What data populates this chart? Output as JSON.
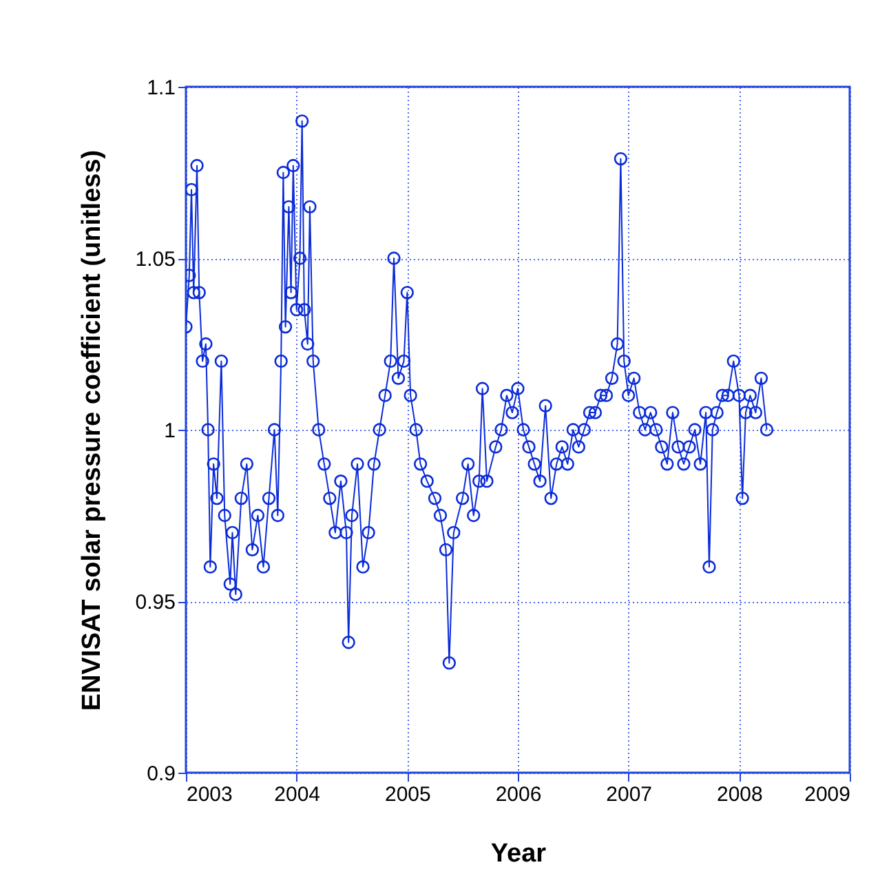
{
  "chart_data": {
    "type": "line",
    "xlabel": "Year",
    "ylabel": "ENVISAT solar pressure coefficient (unitless)",
    "xlim": [
      2003,
      2009
    ],
    "xticks": [
      2003,
      2004,
      2005,
      2006,
      2007,
      2008,
      2009
    ],
    "ylim": [
      0.9,
      1.1
    ],
    "yticks": [
      0.9,
      0.95,
      1,
      1.05,
      1.1
    ],
    "grid": true,
    "marker": "circle",
    "line_style": "solid",
    "series": [
      {
        "color": "#0a2bd8",
        "x": [
          2003.0,
          2003.03,
          2003.05,
          2003.07,
          2003.1,
          2003.12,
          2003.15,
          2003.18,
          2003.2,
          2003.22,
          2003.25,
          2003.28,
          2003.32,
          2003.35,
          2003.4,
          2003.42,
          2003.45,
          2003.5,
          2003.55,
          2003.6,
          2003.65,
          2003.7,
          2003.75,
          2003.8,
          2003.83,
          2003.86,
          2003.88,
          2003.9,
          2003.93,
          2003.95,
          2003.97,
          2004.0,
          2004.03,
          2004.05,
          2004.07,
          2004.1,
          2004.12,
          2004.15,
          2004.2,
          2004.25,
          2004.3,
          2004.35,
          2004.4,
          2004.45,
          2004.47,
          2004.5,
          2004.55,
          2004.6,
          2004.65,
          2004.7,
          2004.75,
          2004.8,
          2004.85,
          2004.88,
          2004.92,
          2004.97,
          2005.0,
          2005.03,
          2005.08,
          2005.12,
          2005.18,
          2005.25,
          2005.3,
          2005.35,
          2005.38,
          2005.42,
          2005.5,
          2005.55,
          2005.6,
          2005.65,
          2005.68,
          2005.72,
          2005.8,
          2005.85,
          2005.9,
          2005.95,
          2006.0,
          2006.05,
          2006.1,
          2006.15,
          2006.2,
          2006.25,
          2006.3,
          2006.35,
          2006.4,
          2006.45,
          2006.5,
          2006.55,
          2006.6,
          2006.65,
          2006.7,
          2006.75,
          2006.8,
          2006.85,
          2006.9,
          2006.93,
          2006.96,
          2007.0,
          2007.05,
          2007.1,
          2007.15,
          2007.2,
          2007.25,
          2007.3,
          2007.35,
          2007.4,
          2007.45,
          2007.5,
          2007.55,
          2007.6,
          2007.65,
          2007.7,
          2007.73,
          2007.76,
          2007.8,
          2007.85,
          2007.9,
          2007.95,
          2008.0,
          2008.03,
          2008.06,
          2008.1,
          2008.15,
          2008.2,
          2008.25
        ],
        "values": [
          1.03,
          1.045,
          1.07,
          1.04,
          1.077,
          1.04,
          1.02,
          1.025,
          1.0,
          0.96,
          0.99,
          0.98,
          1.02,
          0.975,
          0.955,
          0.97,
          0.952,
          0.98,
          0.99,
          0.965,
          0.975,
          0.96,
          0.98,
          1.0,
          0.975,
          1.02,
          1.075,
          1.03,
          1.065,
          1.04,
          1.077,
          1.035,
          1.05,
          1.09,
          1.035,
          1.025,
          1.065,
          1.02,
          1.0,
          0.99,
          0.98,
          0.97,
          0.985,
          0.97,
          0.938,
          0.975,
          0.99,
          0.96,
          0.97,
          0.99,
          1.0,
          1.01,
          1.02,
          1.05,
          1.015,
          1.02,
          1.04,
          1.01,
          1.0,
          0.99,
          0.985,
          0.98,
          0.975,
          0.965,
          0.932,
          0.97,
          0.98,
          0.99,
          0.975,
          0.985,
          1.012,
          0.985,
          0.995,
          1.0,
          1.01,
          1.005,
          1.012,
          1.0,
          0.995,
          0.99,
          0.985,
          1.007,
          0.98,
          0.99,
          0.995,
          0.99,
          1.0,
          0.995,
          1.0,
          1.005,
          1.005,
          1.01,
          1.01,
          1.015,
          1.025,
          1.079,
          1.02,
          1.01,
          1.015,
          1.005,
          1.0,
          1.005,
          1.0,
          0.995,
          0.99,
          1.005,
          0.995,
          0.99,
          0.995,
          1.0,
          0.99,
          1.005,
          0.96,
          1.0,
          1.005,
          1.01,
          1.01,
          1.02,
          1.01,
          0.98,
          1.005,
          1.01,
          1.005,
          1.015,
          1.0
        ]
      }
    ]
  }
}
